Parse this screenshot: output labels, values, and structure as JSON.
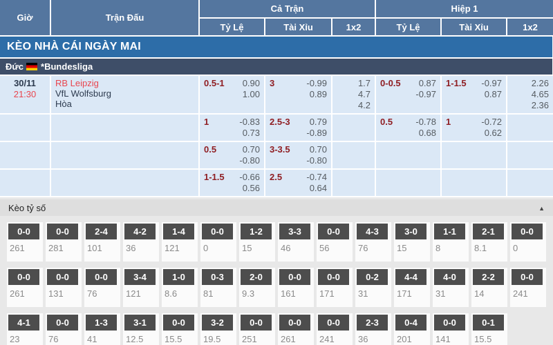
{
  "header": {
    "time_col": "Giờ",
    "match_col": "Trận Đấu",
    "groups": [
      {
        "label": "Cả Trận",
        "subs": [
          "Tỷ Lệ",
          "Tài Xỉu",
          "1x2"
        ]
      },
      {
        "label": "Hiệp 1",
        "subs": [
          "Tỷ Lệ",
          "Tài Xỉu",
          "1x2"
        ]
      }
    ]
  },
  "banner": {
    "title": "KÈO NHÀ CÁI NGÀY MAI"
  },
  "league": {
    "country": "Đức",
    "flag_icon": "germany-flag",
    "name": "*Bundesliga"
  },
  "match": {
    "date": "30/11",
    "time": "21:30",
    "home": "RB Leipzig",
    "away": "VfL Wolfsburg",
    "draw": "Hòa"
  },
  "colors": {
    "header_blue": "#54769f",
    "banner_blue": "#2d6da8",
    "league_navy": "#3e4e68",
    "cell_blue": "#dbe8f6",
    "handicap_red": "#8f1e23",
    "team_red": "#e9454e",
    "team_navy": "#2c3a4e",
    "odds_gray": "#555b61",
    "score_box_gray": "#4d4d4d"
  },
  "odds_rows": [
    {
      "cells": [
        {
          "line": "0.5-1",
          "v1": "0.90",
          "v2": "1.00"
        },
        {
          "line": "3",
          "v1": "-0.99",
          "v2": "0.89"
        },
        {
          "x12": [
            "1.7",
            "4.7",
            "4.2"
          ]
        },
        {
          "line": "0-0.5",
          "v1": "0.87",
          "v2": "-0.97"
        },
        {
          "line": "1-1.5",
          "v1": "-0.97",
          "v2": "0.87"
        },
        {
          "x12": [
            "2.26",
            "4.65",
            "2.36"
          ]
        }
      ]
    },
    {
      "cells": [
        {
          "line": "1",
          "v1": "-0.83",
          "v2": "0.73"
        },
        {
          "line": "2.5-3",
          "v1": "0.79",
          "v2": "-0.89"
        },
        {},
        {
          "line": "0.5",
          "v1": "-0.78",
          "v2": "0.68"
        },
        {
          "line": "1",
          "v1": "-0.72",
          "v2": "0.62"
        },
        {}
      ]
    },
    {
      "cells": [
        {
          "line": "0.5",
          "v1": "0.70",
          "v2": "-0.80"
        },
        {
          "line": "3-3.5",
          "v1": "0.70",
          "v2": "-0.80"
        },
        {},
        {},
        {},
        {}
      ]
    },
    {
      "cells": [
        {
          "line": "1-1.5",
          "v1": "-0.66",
          "v2": "0.56"
        },
        {
          "line": "2.5",
          "v1": "-0.74",
          "v2": "0.64"
        },
        {},
        {},
        {},
        {}
      ]
    }
  ],
  "score_section": {
    "title": "Kèo tỷ số",
    "collapse_icon": "triangle-up",
    "rows": [
      [
        {
          "score": "0-0",
          "odd": "261"
        },
        {
          "score": "0-0",
          "odd": "281"
        },
        {
          "score": "2-4",
          "odd": "101"
        },
        {
          "score": "4-2",
          "odd": "36"
        },
        {
          "score": "1-4",
          "odd": "121"
        },
        {
          "score": "0-0",
          "odd": "0"
        },
        {
          "score": "1-2",
          "odd": "15"
        },
        {
          "score": "3-3",
          "odd": "46"
        },
        {
          "score": "0-0",
          "odd": "56"
        },
        {
          "score": "4-3",
          "odd": "76"
        },
        {
          "score": "3-0",
          "odd": "15"
        },
        {
          "score": "1-1",
          "odd": "8"
        },
        {
          "score": "2-1",
          "odd": "8.1"
        },
        {
          "score": "0-0",
          "odd": "0"
        }
      ],
      [
        {
          "score": "0-0",
          "odd": "261"
        },
        {
          "score": "0-0",
          "odd": "131"
        },
        {
          "score": "0-0",
          "odd": "76"
        },
        {
          "score": "3-4",
          "odd": "121"
        },
        {
          "score": "1-0",
          "odd": "8.6"
        },
        {
          "score": "0-3",
          "odd": "81"
        },
        {
          "score": "2-0",
          "odd": "9.3"
        },
        {
          "score": "0-0",
          "odd": "161"
        },
        {
          "score": "0-0",
          "odd": "171"
        },
        {
          "score": "0-2",
          "odd": "31"
        },
        {
          "score": "4-4",
          "odd": "171"
        },
        {
          "score": "4-0",
          "odd": "31"
        },
        {
          "score": "2-2",
          "odd": "14"
        },
        {
          "score": "0-0",
          "odd": "241"
        }
      ],
      [
        {
          "score": "4-1",
          "odd": "23"
        },
        {
          "score": "0-0",
          "odd": "76"
        },
        {
          "score": "1-3",
          "odd": "41"
        },
        {
          "score": "3-1",
          "odd": "12.5"
        },
        {
          "score": "0-0",
          "odd": "15.5"
        },
        {
          "score": "3-2",
          "odd": "19.5"
        },
        {
          "score": "0-0",
          "odd": "251"
        },
        {
          "score": "0-0",
          "odd": "261"
        },
        {
          "score": "0-0",
          "odd": "241"
        },
        {
          "score": "2-3",
          "odd": "36"
        },
        {
          "score": "0-4",
          "odd": "201"
        },
        {
          "score": "0-0",
          "odd": "141"
        },
        {
          "score": "0-1",
          "odd": "15.5"
        },
        null
      ]
    ]
  }
}
